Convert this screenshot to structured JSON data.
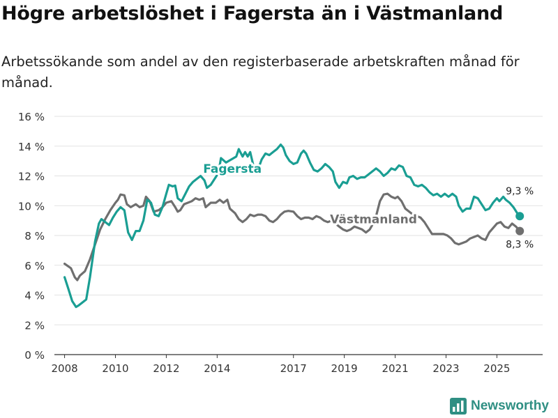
{
  "header": {
    "title": "Högre arbetslöshet i Fagersta än i Västmanland",
    "subtitle": "Arbetssökande som andel av den registerbaserade arbetskraften månad för månad."
  },
  "brand": {
    "name": "Newsworthy",
    "icon": "bar-chart-logo-icon",
    "color": "#2f8f83"
  },
  "chart_data": {
    "type": "line",
    "title": "Högre arbetslöshet i Fagersta än i Västmanland",
    "subtitle": "Arbetssökande som andel av den registerbaserade arbetskraften månad för månad.",
    "xlabel": "",
    "ylabel": "",
    "xlim": [
      2007.6,
      2026.8
    ],
    "ylim": [
      0,
      16
    ],
    "grid": "horizontal",
    "x_ticks": [
      2008,
      2010,
      2012,
      2014,
      2017,
      2019,
      2021,
      2023,
      2025
    ],
    "x_tick_labels": [
      "2008",
      "2010",
      "2012",
      "2014",
      "2017",
      "2019",
      "2021",
      "2023",
      "2025"
    ],
    "y_ticks": [
      0,
      2,
      4,
      6,
      8,
      10,
      12,
      14,
      16
    ],
    "y_tick_labels": [
      "0 %",
      "2 %",
      "4 %",
      "6 %",
      "8 %",
      "10 %",
      "12 %",
      "14 %",
      "16 %"
    ],
    "series": [
      {
        "name": "Västmanland",
        "label": "Västmanland",
        "color": "#6f6f6f",
        "end_label": "8,3 %",
        "end_value": 8.3,
        "points": [
          [
            2008.0,
            6.1
          ],
          [
            2008.25,
            5.8
          ],
          [
            2008.4,
            5.2
          ],
          [
            2008.5,
            5.0
          ],
          [
            2008.6,
            5.3
          ],
          [
            2008.8,
            5.6
          ],
          [
            2009.0,
            6.4
          ],
          [
            2009.2,
            7.4
          ],
          [
            2009.4,
            8.4
          ],
          [
            2009.6,
            9.1
          ],
          [
            2009.8,
            9.7
          ],
          [
            2010.0,
            10.2
          ],
          [
            2010.1,
            10.4
          ],
          [
            2010.2,
            10.75
          ],
          [
            2010.35,
            10.7
          ],
          [
            2010.45,
            10.1
          ],
          [
            2010.6,
            9.9
          ],
          [
            2010.8,
            10.1
          ],
          [
            2010.95,
            9.9
          ],
          [
            2011.1,
            10.0
          ],
          [
            2011.2,
            10.6
          ],
          [
            2011.35,
            10.3
          ],
          [
            2011.5,
            9.6
          ],
          [
            2011.7,
            9.7
          ],
          [
            2011.85,
            9.9
          ],
          [
            2012.0,
            10.2
          ],
          [
            2012.2,
            10.3
          ],
          [
            2012.35,
            9.9
          ],
          [
            2012.45,
            9.6
          ],
          [
            2012.55,
            9.7
          ],
          [
            2012.7,
            10.1
          ],
          [
            2012.85,
            10.2
          ],
          [
            2013.0,
            10.3
          ],
          [
            2013.15,
            10.5
          ],
          [
            2013.3,
            10.4
          ],
          [
            2013.45,
            10.5
          ],
          [
            2013.55,
            9.9
          ],
          [
            2013.75,
            10.2
          ],
          [
            2013.95,
            10.2
          ],
          [
            2014.1,
            10.4
          ],
          [
            2014.25,
            10.2
          ],
          [
            2014.4,
            10.4
          ],
          [
            2014.5,
            9.8
          ],
          [
            2014.7,
            9.5
          ],
          [
            2014.85,
            9.1
          ],
          [
            2015.0,
            8.9
          ],
          [
            2015.15,
            9.1
          ],
          [
            2015.3,
            9.4
          ],
          [
            2015.45,
            9.3
          ],
          [
            2015.6,
            9.4
          ],
          [
            2015.75,
            9.4
          ],
          [
            2015.9,
            9.3
          ],
          [
            2016.05,
            9.0
          ],
          [
            2016.2,
            8.9
          ],
          [
            2016.35,
            9.1
          ],
          [
            2016.5,
            9.4
          ],
          [
            2016.65,
            9.6
          ],
          [
            2016.8,
            9.65
          ],
          [
            2017.0,
            9.6
          ],
          [
            2017.15,
            9.3
          ],
          [
            2017.3,
            9.1
          ],
          [
            2017.45,
            9.2
          ],
          [
            2017.6,
            9.2
          ],
          [
            2017.75,
            9.1
          ],
          [
            2017.9,
            9.3
          ],
          [
            2018.05,
            9.2
          ],
          [
            2018.2,
            9.0
          ],
          [
            2018.35,
            8.9
          ],
          [
            2018.5,
            9.0
          ],
          [
            2018.65,
            8.8
          ],
          [
            2018.8,
            8.6
          ],
          [
            2018.95,
            8.4
          ],
          [
            2019.1,
            8.3
          ],
          [
            2019.25,
            8.4
          ],
          [
            2019.4,
            8.6
          ],
          [
            2019.55,
            8.5
          ],
          [
            2019.7,
            8.4
          ],
          [
            2019.85,
            8.2
          ],
          [
            2020.0,
            8.4
          ],
          [
            2020.1,
            8.7
          ],
          [
            2020.25,
            9.3
          ],
          [
            2020.4,
            10.3
          ],
          [
            2020.55,
            10.75
          ],
          [
            2020.7,
            10.8
          ],
          [
            2020.85,
            10.6
          ],
          [
            2021.0,
            10.5
          ],
          [
            2021.1,
            10.6
          ],
          [
            2021.25,
            10.3
          ],
          [
            2021.4,
            9.8
          ],
          [
            2021.55,
            9.6
          ],
          [
            2021.7,
            9.4
          ],
          [
            2021.85,
            9.3
          ],
          [
            2022.0,
            9.2
          ],
          [
            2022.15,
            8.9
          ],
          [
            2022.3,
            8.5
          ],
          [
            2022.45,
            8.1
          ],
          [
            2022.6,
            8.1
          ],
          [
            2022.75,
            8.1
          ],
          [
            2022.9,
            8.1
          ],
          [
            2023.05,
            8.0
          ],
          [
            2023.2,
            7.8
          ],
          [
            2023.35,
            7.5
          ],
          [
            2023.5,
            7.4
          ],
          [
            2023.65,
            7.5
          ],
          [
            2023.8,
            7.6
          ],
          [
            2023.95,
            7.8
          ],
          [
            2024.1,
            7.9
          ],
          [
            2024.25,
            8.0
          ],
          [
            2024.4,
            7.8
          ],
          [
            2024.55,
            7.7
          ],
          [
            2024.7,
            8.2
          ],
          [
            2024.85,
            8.5
          ],
          [
            2025.0,
            8.8
          ],
          [
            2025.15,
            8.9
          ],
          [
            2025.3,
            8.6
          ],
          [
            2025.45,
            8.5
          ],
          [
            2025.6,
            8.8
          ],
          [
            2025.75,
            8.6
          ],
          [
            2025.9,
            8.3
          ]
        ]
      },
      {
        "name": "Fagersta",
        "label": "Fagersta",
        "color": "#1a9e93",
        "end_label": "9,3 %",
        "end_value": 9.3,
        "points": [
          [
            2008.0,
            5.2
          ],
          [
            2008.15,
            4.4
          ],
          [
            2008.3,
            3.6
          ],
          [
            2008.45,
            3.2
          ],
          [
            2008.55,
            3.3
          ],
          [
            2008.7,
            3.5
          ],
          [
            2008.85,
            3.7
          ],
          [
            2009.0,
            5.2
          ],
          [
            2009.2,
            7.6
          ],
          [
            2009.35,
            8.8
          ],
          [
            2009.45,
            9.1
          ],
          [
            2009.6,
            8.9
          ],
          [
            2009.75,
            8.7
          ],
          [
            2009.9,
            9.2
          ],
          [
            2010.05,
            9.6
          ],
          [
            2010.2,
            9.9
          ],
          [
            2010.35,
            9.7
          ],
          [
            2010.5,
            8.2
          ],
          [
            2010.65,
            7.7
          ],
          [
            2010.8,
            8.3
          ],
          [
            2010.95,
            8.3
          ],
          [
            2011.1,
            9.0
          ],
          [
            2011.25,
            10.4
          ],
          [
            2011.4,
            10.2
          ],
          [
            2011.55,
            9.4
          ],
          [
            2011.7,
            9.3
          ],
          [
            2011.85,
            9.9
          ],
          [
            2012.0,
            10.8
          ],
          [
            2012.1,
            11.4
          ],
          [
            2012.25,
            11.3
          ],
          [
            2012.35,
            11.35
          ],
          [
            2012.45,
            10.5
          ],
          [
            2012.6,
            10.3
          ],
          [
            2012.75,
            10.8
          ],
          [
            2012.9,
            11.3
          ],
          [
            2013.05,
            11.6
          ],
          [
            2013.2,
            11.8
          ],
          [
            2013.35,
            12.0
          ],
          [
            2013.5,
            11.7
          ],
          [
            2013.6,
            11.2
          ],
          [
            2013.75,
            11.4
          ],
          [
            2013.9,
            11.8
          ],
          [
            2014.05,
            12.2
          ],
          [
            2014.15,
            13.2
          ],
          [
            2014.35,
            12.9
          ],
          [
            2014.55,
            13.1
          ],
          [
            2014.75,
            13.3
          ],
          [
            2014.85,
            13.8
          ],
          [
            2015.0,
            13.3
          ],
          [
            2015.1,
            13.6
          ],
          [
            2015.2,
            13.3
          ],
          [
            2015.3,
            13.6
          ],
          [
            2015.45,
            12.5
          ],
          [
            2015.6,
            12.4
          ],
          [
            2015.75,
            13.1
          ],
          [
            2015.9,
            13.5
          ],
          [
            2016.05,
            13.4
          ],
          [
            2016.2,
            13.6
          ],
          [
            2016.35,
            13.8
          ],
          [
            2016.5,
            14.1
          ],
          [
            2016.6,
            13.9
          ],
          [
            2016.7,
            13.4
          ],
          [
            2016.85,
            13.0
          ],
          [
            2017.0,
            12.8
          ],
          [
            2017.15,
            12.9
          ],
          [
            2017.3,
            13.5
          ],
          [
            2017.4,
            13.7
          ],
          [
            2017.5,
            13.5
          ],
          [
            2017.65,
            12.9
          ],
          [
            2017.8,
            12.4
          ],
          [
            2017.95,
            12.3
          ],
          [
            2018.1,
            12.5
          ],
          [
            2018.25,
            12.8
          ],
          [
            2018.4,
            12.6
          ],
          [
            2018.55,
            12.3
          ],
          [
            2018.65,
            11.6
          ],
          [
            2018.8,
            11.2
          ],
          [
            2018.95,
            11.6
          ],
          [
            2019.1,
            11.5
          ],
          [
            2019.2,
            11.9
          ],
          [
            2019.35,
            12.0
          ],
          [
            2019.5,
            11.8
          ],
          [
            2019.65,
            11.9
          ],
          [
            2019.8,
            11.9
          ],
          [
            2019.95,
            12.1
          ],
          [
            2020.1,
            12.3
          ],
          [
            2020.25,
            12.5
          ],
          [
            2020.4,
            12.3
          ],
          [
            2020.55,
            12.0
          ],
          [
            2020.7,
            12.2
          ],
          [
            2020.85,
            12.5
          ],
          [
            2021.0,
            12.4
          ],
          [
            2021.15,
            12.7
          ],
          [
            2021.3,
            12.6
          ],
          [
            2021.45,
            12.0
          ],
          [
            2021.6,
            11.9
          ],
          [
            2021.75,
            11.4
          ],
          [
            2021.9,
            11.3
          ],
          [
            2022.05,
            11.4
          ],
          [
            2022.2,
            11.2
          ],
          [
            2022.35,
            10.9
          ],
          [
            2022.5,
            10.7
          ],
          [
            2022.65,
            10.8
          ],
          [
            2022.8,
            10.6
          ],
          [
            2022.95,
            10.8
          ],
          [
            2023.1,
            10.6
          ],
          [
            2023.25,
            10.8
          ],
          [
            2023.4,
            10.6
          ],
          [
            2023.5,
            10.0
          ],
          [
            2023.65,
            9.6
          ],
          [
            2023.8,
            9.8
          ],
          [
            2023.95,
            9.8
          ],
          [
            2024.1,
            10.6
          ],
          [
            2024.25,
            10.5
          ],
          [
            2024.4,
            10.1
          ],
          [
            2024.55,
            9.7
          ],
          [
            2024.7,
            9.8
          ],
          [
            2024.85,
            10.2
          ],
          [
            2025.0,
            10.5
          ],
          [
            2025.1,
            10.3
          ],
          [
            2025.25,
            10.6
          ],
          [
            2025.35,
            10.4
          ],
          [
            2025.5,
            10.2
          ],
          [
            2025.65,
            9.9
          ],
          [
            2025.8,
            9.5
          ],
          [
            2025.9,
            9.3
          ]
        ]
      }
    ]
  }
}
